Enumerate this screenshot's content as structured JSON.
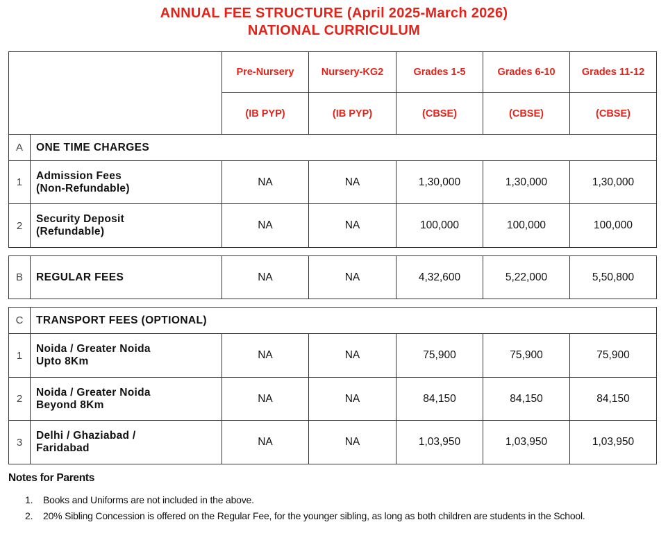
{
  "title": {
    "line1": "ANNUAL FEE STRUCTURE (April 2025-March 2026)",
    "line2": "NATIONAL CURRICULUM"
  },
  "columns": [
    {
      "grade": "Pre-Nursery",
      "board": "(IB PYP)"
    },
    {
      "grade": "Nursery-KG2",
      "board": "(IB PYP)"
    },
    {
      "grade": "Grades 1-5",
      "board": "(CBSE)"
    },
    {
      "grade": "Grades 6-10",
      "board": "(CBSE)"
    },
    {
      "grade": "Grades 11-12",
      "board": "(CBSE)"
    }
  ],
  "sections": {
    "A": {
      "letter": "A",
      "title": "ONE TIME CHARGES",
      "rows": [
        {
          "num": "1",
          "label": [
            "Admission Fees",
            "(Non-Refundable)"
          ],
          "values": [
            "NA",
            "NA",
            "1,30,000",
            "1,30,000",
            "1,30,000"
          ]
        },
        {
          "num": "2",
          "label": [
            "Security Deposit",
            "(Refundable)"
          ],
          "values": [
            "NA",
            "NA",
            "100,000",
            "100,000",
            "100,000"
          ]
        }
      ]
    },
    "B": {
      "letter": "B",
      "title": "REGULAR FEES",
      "values": [
        "NA",
        "NA",
        "4,32,600",
        "5,22,000",
        "5,50,800"
      ]
    },
    "C": {
      "letter": "C",
      "title": "TRANSPORT FEES (OPTIONAL)",
      "rows": [
        {
          "num": "1",
          "label": [
            "Noida / Greater Noida",
            "Upto 8Km"
          ],
          "values": [
            "NA",
            "NA",
            "75,900",
            "75,900",
            "75,900"
          ]
        },
        {
          "num": "2",
          "label": [
            "Noida / Greater Noida",
            "Beyond 8Km"
          ],
          "values": [
            "NA",
            "NA",
            "84,150",
            "84,150",
            "84,150"
          ]
        },
        {
          "num": "3",
          "label": [
            "Delhi / Ghaziabad /",
            "Faridabad"
          ],
          "values": [
            "NA",
            "NA",
            "1,03,950",
            "1,03,950",
            "1,03,950"
          ]
        }
      ]
    }
  },
  "notes": {
    "title": "Notes for Parents",
    "items": [
      {
        "num": "1.",
        "text": "Books and Uniforms are not included in the above."
      },
      {
        "num": "2.",
        "text": "20% Sibling Concession is offered on the Regular Fee, for the younger sibling, as long as both children are students in the School."
      }
    ]
  }
}
